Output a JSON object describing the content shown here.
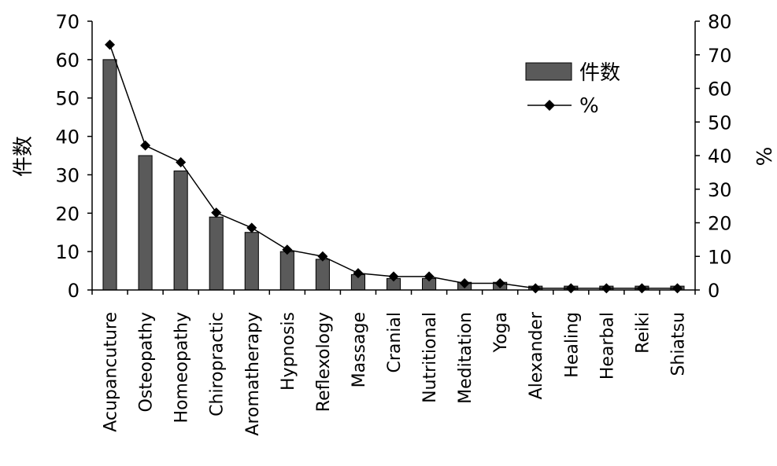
{
  "chart_data": {
    "type": "bar",
    "categories": [
      "Acupancuture",
      "Osteopathy",
      "Homeopathy",
      "Chiropractic",
      "Aromatherapy",
      "Hypnosis",
      "Reflexology",
      "Massage",
      "Cranial",
      "Nutritional",
      "Meditation",
      "Yoga",
      "Alexander",
      "Healing",
      "Hearbal",
      "Reiki",
      "Shiatsu"
    ],
    "series": [
      {
        "name": "件数",
        "type": "bar",
        "axis": "left",
        "color": "#5a5a5a",
        "values": [
          60,
          35,
          31,
          19,
          15,
          10,
          8,
          4,
          3,
          3,
          2,
          2,
          1,
          1,
          1,
          1,
          1
        ]
      },
      {
        "name": "%",
        "type": "line",
        "axis": "right",
        "color": "#000000",
        "marker": "diamond",
        "values": [
          73,
          43,
          38,
          23,
          18.5,
          12,
          10,
          5,
          4,
          4,
          2,
          2,
          0.5,
          0.5,
          0.5,
          0.5,
          0.5
        ]
      }
    ],
    "ylabel": "件数",
    "y2label": "%",
    "ylim": [
      0,
      70
    ],
    "y2lim": [
      0,
      80
    ],
    "yticks": [
      0,
      10,
      20,
      30,
      40,
      50,
      60,
      70
    ],
    "y2ticks": [
      0,
      10,
      20,
      30,
      40,
      50,
      60,
      70,
      80
    ],
    "grid": false,
    "legend_position": "top-right"
  }
}
